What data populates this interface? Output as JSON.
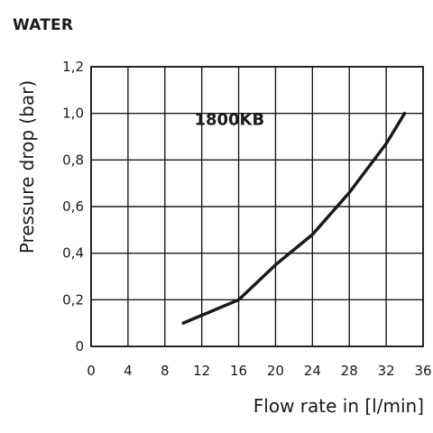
{
  "chart_data": {
    "type": "line",
    "title": "WATER",
    "xlabel": "Flow rate in [l/min]",
    "ylabel": "Pressure drop (bar)",
    "annotation": "1800KB",
    "xlim": [
      0,
      36
    ],
    "ylim": [
      0,
      1.2
    ],
    "x_ticks": [
      "0",
      "4",
      "8",
      "12",
      "16",
      "20",
      "24",
      "28",
      "32",
      "36"
    ],
    "y_ticks": [
      "0",
      "0,2",
      "0,4",
      "0,6",
      "0,8",
      "1,0",
      "1,2"
    ],
    "grid": true,
    "series": [
      {
        "x": [
          10,
          16,
          20,
          24,
          28,
          32,
          34
        ],
        "y": [
          0.1,
          0.2,
          0.35,
          0.48,
          0.66,
          0.87,
          1.0
        ]
      }
    ],
    "line_color": "#1a1a1a"
  }
}
